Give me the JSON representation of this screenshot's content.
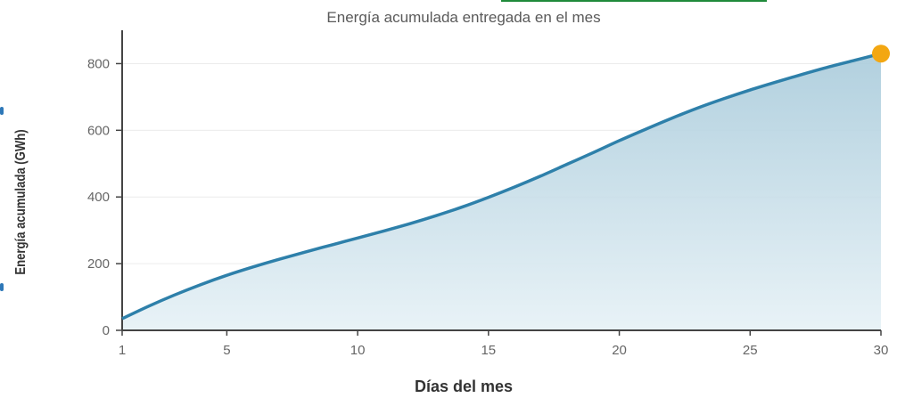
{
  "chart_data": {
    "type": "area",
    "title": "Energía acumulada entregada en el mes",
    "xlabel": "Días del mes",
    "ylabel": "Energía acumulada (GWh)",
    "xlim": [
      1,
      30
    ],
    "ylim": [
      0,
      900
    ],
    "x_ticks": [
      1,
      5,
      10,
      15,
      20,
      25,
      30
    ],
    "y_ticks": [
      0,
      200,
      400,
      600,
      800
    ],
    "grid": "horizontal",
    "series": [
      {
        "x": [
          1,
          2,
          3,
          4,
          5,
          6,
          7,
          8,
          9,
          10,
          11,
          12,
          13,
          14,
          15,
          16,
          17,
          18,
          19,
          20,
          21,
          22,
          23,
          24,
          25,
          26,
          27,
          28,
          29,
          30
        ],
        "y": [
          35,
          72,
          106,
          137,
          165,
          190,
          213,
          235,
          256,
          277,
          298,
          320,
          344,
          370,
          399,
          430,
          463,
          498,
          533,
          569,
          603,
          636,
          667,
          695,
          721,
          745,
          768,
          790,
          810,
          830
        ],
        "color": "#2e80aa",
        "fill": "#bcd7e3"
      }
    ],
    "end_marker": {
      "x": 30,
      "y": 830,
      "color": "#f3a712"
    }
  },
  "decor": {
    "top_strip_color": "#1f8a3a"
  }
}
